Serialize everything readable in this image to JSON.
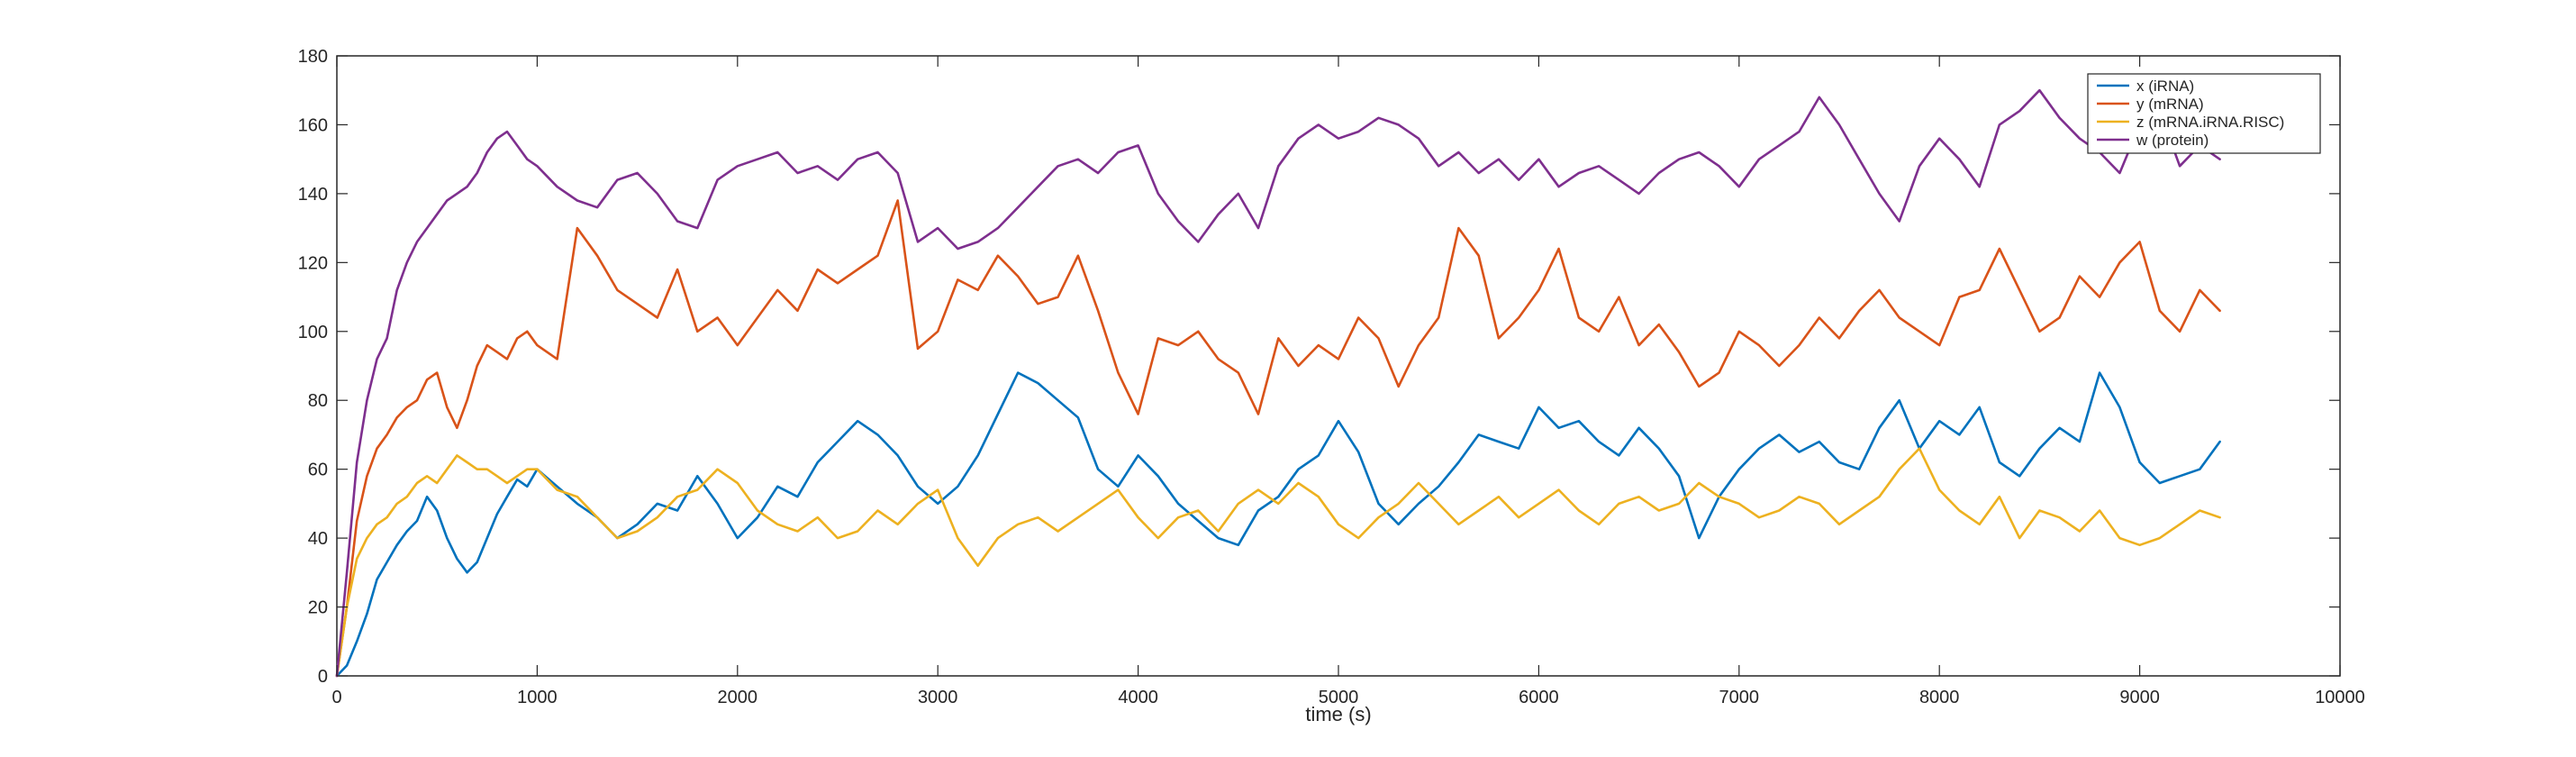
{
  "chart_data": {
    "type": "line",
    "title": "",
    "xlabel": "time (s)",
    "ylabel": "",
    "xlim": [
      0,
      10000
    ],
    "ylim": [
      0,
      180
    ],
    "x_ticks": [
      0,
      1000,
      2000,
      3000,
      4000,
      5000,
      6000,
      7000,
      8000,
      9000,
      10000
    ],
    "y_ticks": [
      0,
      20,
      40,
      60,
      80,
      100,
      120,
      140,
      160,
      180
    ],
    "grid": false,
    "legend_position": "top-right",
    "series": [
      {
        "name": "x (iRNA)",
        "color": "#0072BD",
        "x": [
          0,
          50,
          100,
          150,
          200,
          250,
          300,
          350,
          400,
          450,
          500,
          550,
          600,
          650,
          700,
          750,
          800,
          850,
          900,
          950,
          1000,
          1100,
          1200,
          1300,
          1400,
          1500,
          1600,
          1700,
          1800,
          1900,
          2000,
          2100,
          2200,
          2300,
          2400,
          2500,
          2600,
          2700,
          2800,
          2900,
          3000,
          3100,
          3200,
          3300,
          3400,
          3500,
          3600,
          3700,
          3800,
          3900,
          4000,
          4100,
          4200,
          4300,
          4400,
          4500,
          4600,
          4700,
          4800,
          4900,
          5000,
          5100,
          5200,
          5300,
          5400,
          5500,
          5600,
          5700,
          5800,
          5900,
          6000,
          6100,
          6200,
          6300,
          6400,
          6500,
          6600,
          6700,
          6800,
          6900,
          7000,
          7100,
          7200,
          7300,
          7400,
          7500,
          7600,
          7700,
          7800,
          7900,
          8000,
          8100,
          8200,
          8300,
          8400,
          8500,
          8600,
          8700,
          8800,
          8900,
          9000,
          9100,
          9200,
          9300,
          9400
        ],
        "y": [
          0,
          3,
          10,
          18,
          28,
          33,
          38,
          42,
          45,
          52,
          48,
          40,
          34,
          30,
          33,
          40,
          47,
          52,
          57,
          55,
          60,
          55,
          50,
          46,
          40,
          44,
          50,
          48,
          58,
          50,
          40,
          46,
          55,
          52,
          62,
          68,
          74,
          70,
          64,
          55,
          50,
          55,
          64,
          76,
          88,
          85,
          80,
          75,
          60,
          55,
          64,
          58,
          50,
          45,
          40,
          38,
          48,
          52,
          60,
          64,
          74,
          65,
          50,
          44,
          50,
          55,
          62,
          70,
          68,
          66,
          78,
          72,
          74,
          68,
          64,
          72,
          66,
          58,
          40,
          52,
          60,
          66,
          70,
          65,
          68,
          62,
          60,
          72,
          80,
          66,
          74,
          70,
          78,
          62,
          58,
          66,
          72,
          68,
          88,
          78,
          62,
          56,
          58,
          60,
          68
        ]
      },
      {
        "name": "y (mRNA)",
        "color": "#D95319",
        "x": [
          0,
          50,
          100,
          150,
          200,
          250,
          300,
          350,
          400,
          450,
          500,
          550,
          600,
          650,
          700,
          750,
          800,
          850,
          900,
          950,
          1000,
          1100,
          1200,
          1300,
          1400,
          1500,
          1600,
          1700,
          1800,
          1900,
          2000,
          2100,
          2200,
          2300,
          2400,
          2500,
          2600,
          2700,
          2800,
          2900,
          3000,
          3100,
          3200,
          3300,
          3400,
          3500,
          3600,
          3700,
          3800,
          3900,
          4000,
          4100,
          4200,
          4300,
          4400,
          4500,
          4600,
          4700,
          4800,
          4900,
          5000,
          5100,
          5200,
          5300,
          5400,
          5500,
          5600,
          5700,
          5800,
          5900,
          6000,
          6100,
          6200,
          6300,
          6400,
          6500,
          6600,
          6700,
          6800,
          6900,
          7000,
          7100,
          7200,
          7300,
          7400,
          7500,
          7600,
          7700,
          7800,
          7900,
          8000,
          8100,
          8200,
          8300,
          8400,
          8500,
          8600,
          8700,
          8800,
          8900,
          9000,
          9100,
          9200,
          9300,
          9400
        ],
        "y": [
          0,
          20,
          45,
          58,
          66,
          70,
          75,
          78,
          80,
          86,
          88,
          78,
          72,
          80,
          90,
          96,
          94,
          92,
          98,
          100,
          96,
          92,
          130,
          122,
          112,
          108,
          104,
          118,
          100,
          104,
          96,
          104,
          112,
          106,
          118,
          114,
          118,
          122,
          138,
          95,
          100,
          115,
          112,
          122,
          116,
          108,
          110,
          122,
          106,
          88,
          76,
          98,
          96,
          100,
          92,
          88,
          76,
          98,
          90,
          96,
          92,
          104,
          98,
          84,
          96,
          104,
          130,
          122,
          98,
          104,
          112,
          124,
          104,
          100,
          110,
          96,
          102,
          94,
          84,
          88,
          100,
          96,
          90,
          96,
          104,
          98,
          106,
          112,
          104,
          100,
          96,
          110,
          112,
          124,
          112,
          100,
          104,
          116,
          110,
          120,
          126,
          106,
          100,
          112,
          106
        ]
      },
      {
        "name": "z (mRNA.iRNA.RISC)",
        "color": "#EDB120",
        "x": [
          0,
          50,
          100,
          150,
          200,
          250,
          300,
          350,
          400,
          450,
          500,
          550,
          600,
          650,
          700,
          750,
          800,
          850,
          900,
          950,
          1000,
          1100,
          1200,
          1300,
          1400,
          1500,
          1600,
          1700,
          1800,
          1900,
          2000,
          2100,
          2200,
          2300,
          2400,
          2500,
          2600,
          2700,
          2800,
          2900,
          3000,
          3100,
          3200,
          3300,
          3400,
          3500,
          3600,
          3700,
          3800,
          3900,
          4000,
          4100,
          4200,
          4300,
          4400,
          4500,
          4600,
          4700,
          4800,
          4900,
          5000,
          5100,
          5200,
          5300,
          5400,
          5500,
          5600,
          5700,
          5800,
          5900,
          6000,
          6100,
          6200,
          6300,
          6400,
          6500,
          6600,
          6700,
          6800,
          6900,
          7000,
          7100,
          7200,
          7300,
          7400,
          7500,
          7600,
          7700,
          7800,
          7900,
          8000,
          8100,
          8200,
          8300,
          8400,
          8500,
          8600,
          8700,
          8800,
          8900,
          9000,
          9100,
          9200,
          9300,
          9400
        ],
        "y": [
          0,
          20,
          34,
          40,
          44,
          46,
          50,
          52,
          56,
          58,
          56,
          60,
          64,
          62,
          60,
          60,
          58,
          56,
          58,
          60,
          60,
          54,
          52,
          46,
          40,
          42,
          46,
          52,
          54,
          60,
          56,
          48,
          44,
          42,
          46,
          40,
          42,
          48,
          44,
          50,
          54,
          40,
          32,
          40,
          44,
          46,
          42,
          46,
          50,
          54,
          46,
          40,
          46,
          48,
          42,
          50,
          54,
          50,
          56,
          52,
          44,
          40,
          46,
          50,
          56,
          50,
          44,
          48,
          52,
          46,
          50,
          54,
          48,
          44,
          50,
          52,
          48,
          50,
          56,
          52,
          50,
          46,
          48,
          52,
          50,
          44,
          48,
          52,
          60,
          66,
          54,
          48,
          44,
          52,
          40,
          48,
          46,
          42,
          48,
          40,
          38,
          40,
          44,
          48,
          46
        ]
      },
      {
        "name": "w (protein)",
        "color": "#7E2F8E",
        "x": [
          0,
          50,
          100,
          150,
          200,
          250,
          300,
          350,
          400,
          450,
          500,
          550,
          600,
          650,
          700,
          750,
          800,
          850,
          900,
          950,
          1000,
          1100,
          1200,
          1300,
          1400,
          1500,
          1600,
          1700,
          1800,
          1900,
          2000,
          2100,
          2200,
          2300,
          2400,
          2500,
          2600,
          2700,
          2800,
          2900,
          3000,
          3100,
          3200,
          3300,
          3400,
          3500,
          3600,
          3700,
          3800,
          3900,
          4000,
          4100,
          4200,
          4300,
          4400,
          4500,
          4600,
          4700,
          4800,
          4900,
          5000,
          5100,
          5200,
          5300,
          5400,
          5500,
          5600,
          5700,
          5800,
          5900,
          6000,
          6100,
          6200,
          6300,
          6400,
          6500,
          6600,
          6700,
          6800,
          6900,
          7000,
          7100,
          7200,
          7300,
          7400,
          7500,
          7600,
          7700,
          7800,
          7900,
          8000,
          8100,
          8200,
          8300,
          8400,
          8500,
          8600,
          8700,
          8800,
          8900,
          9000,
          9100,
          9200,
          9300,
          9400
        ],
        "y": [
          0,
          30,
          62,
          80,
          92,
          98,
          112,
          120,
          126,
          130,
          134,
          138,
          140,
          142,
          146,
          152,
          156,
          158,
          154,
          150,
          148,
          142,
          138,
          136,
          144,
          146,
          140,
          132,
          130,
          144,
          148,
          150,
          152,
          146,
          148,
          144,
          150,
          152,
          146,
          126,
          130,
          124,
          126,
          130,
          136,
          142,
          148,
          150,
          146,
          152,
          154,
          140,
          132,
          126,
          134,
          140,
          130,
          148,
          156,
          160,
          156,
          158,
          162,
          160,
          156,
          148,
          152,
          146,
          150,
          144,
          150,
          142,
          146,
          148,
          144,
          140,
          146,
          150,
          152,
          148,
          142,
          150,
          154,
          158,
          168,
          160,
          150,
          140,
          132,
          148,
          156,
          150,
          142,
          160,
          164,
          170,
          162,
          156,
          152,
          146,
          160,
          164,
          148,
          154,
          150
        ]
      }
    ]
  }
}
